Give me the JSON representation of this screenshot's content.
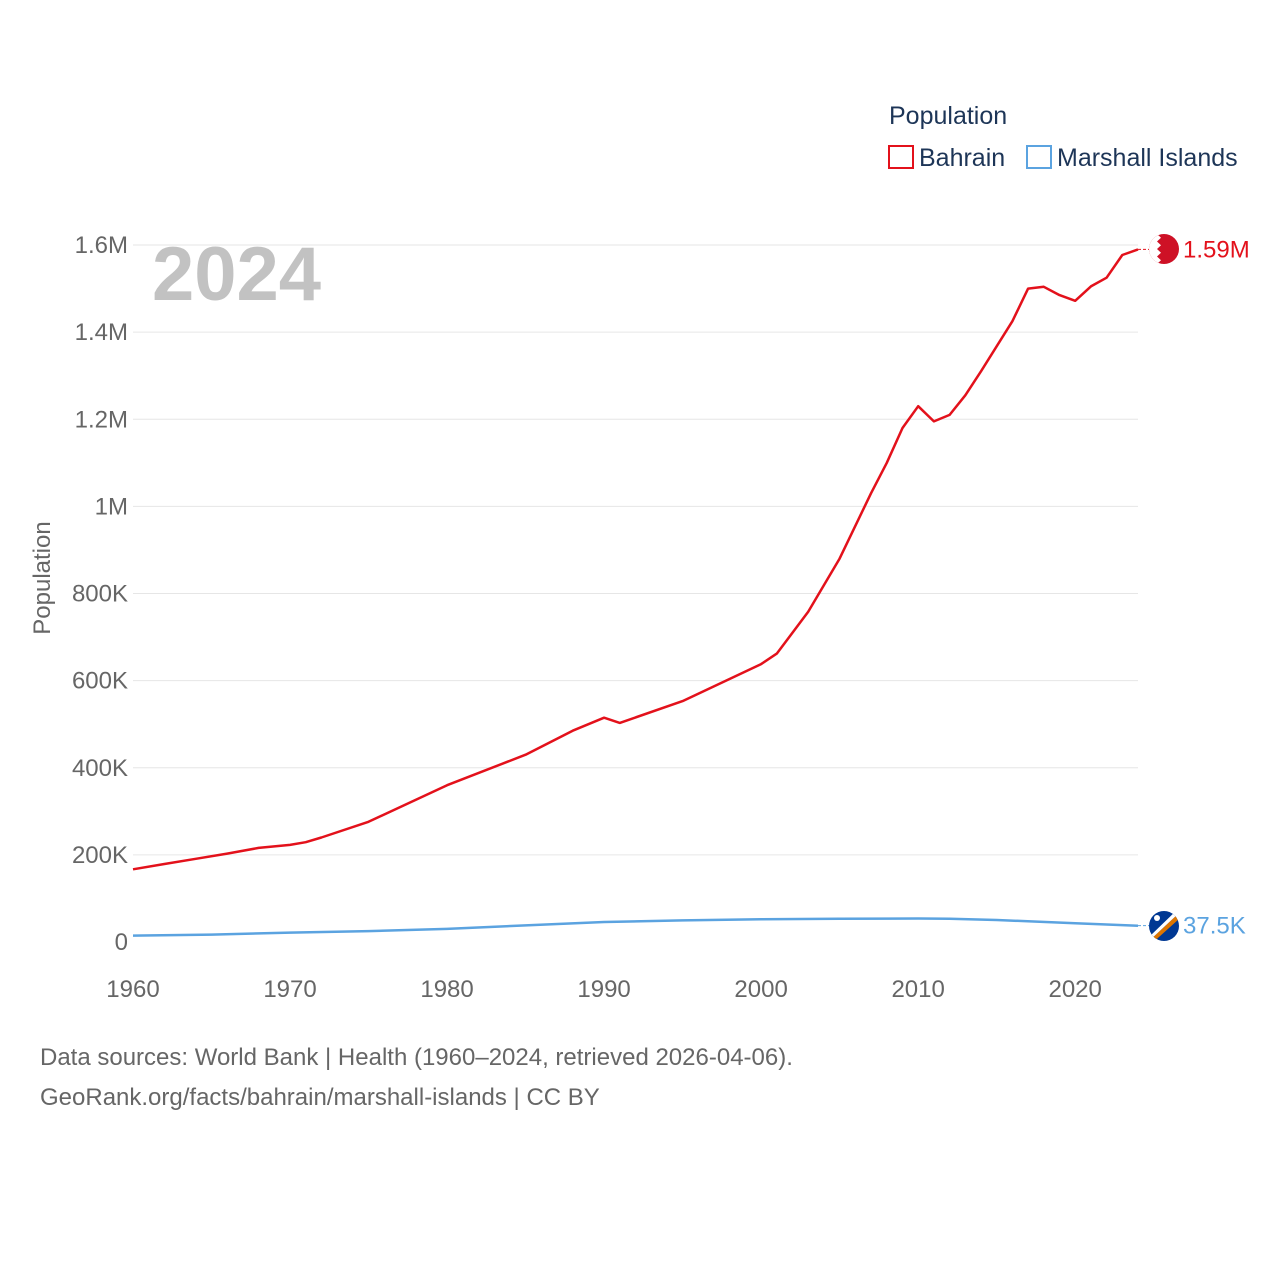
{
  "chart_data": {
    "type": "line",
    "title": "",
    "year_label": "2024",
    "ylabel": "Population",
    "xlabel": "",
    "xlim": [
      1960,
      2024
    ],
    "ylim": [
      0,
      1600000
    ],
    "x_ticks": [
      {
        "value": 1960,
        "label": "1960"
      },
      {
        "value": 1970,
        "label": "1970"
      },
      {
        "value": 1980,
        "label": "1980"
      },
      {
        "value": 1990,
        "label": "1990"
      },
      {
        "value": 2000,
        "label": "2000"
      },
      {
        "value": 2010,
        "label": "2010"
      },
      {
        "value": 2020,
        "label": "2020"
      }
    ],
    "y_ticks": [
      {
        "value": 0,
        "label": "0"
      },
      {
        "value": 200000,
        "label": "200K"
      },
      {
        "value": 400000,
        "label": "400K"
      },
      {
        "value": 600000,
        "label": "600K"
      },
      {
        "value": 800000,
        "label": "800K"
      },
      {
        "value": 1000000,
        "label": "1M"
      },
      {
        "value": 1200000,
        "label": "1.2M"
      },
      {
        "value": 1400000,
        "label": "1.4M"
      },
      {
        "value": 1600000,
        "label": "1.6M"
      }
    ],
    "legend": {
      "title": "Population",
      "position": "top-right"
    },
    "grid": true,
    "series": [
      {
        "name": "Bahrain",
        "color": "#e3111b",
        "end_label": "1.59M",
        "flag": "bahrain-flag",
        "points": [
          [
            1960,
            167000
          ],
          [
            1962,
            179000
          ],
          [
            1964,
            191000
          ],
          [
            1966,
            203000
          ],
          [
            1968,
            216000
          ],
          [
            1970,
            223000
          ],
          [
            1971,
            229000
          ],
          [
            1972,
            240000
          ],
          [
            1975,
            276000
          ],
          [
            1980,
            360000
          ],
          [
            1985,
            430000
          ],
          [
            1988,
            485000
          ],
          [
            1990,
            515000
          ],
          [
            1991,
            503000
          ],
          [
            1995,
            553000
          ],
          [
            2000,
            638000
          ],
          [
            2001,
            662000
          ],
          [
            2003,
            758000
          ],
          [
            2005,
            880000
          ],
          [
            2007,
            1030000
          ],
          [
            2008,
            1100000
          ],
          [
            2009,
            1180000
          ],
          [
            2010,
            1230000
          ],
          [
            2011,
            1195000
          ],
          [
            2012,
            1210000
          ],
          [
            2013,
            1255000
          ],
          [
            2014,
            1310000
          ],
          [
            2016,
            1425000
          ],
          [
            2017,
            1500000
          ],
          [
            2018,
            1504000
          ],
          [
            2019,
            1485000
          ],
          [
            2020,
            1472000
          ],
          [
            2021,
            1505000
          ],
          [
            2022,
            1525000
          ],
          [
            2023,
            1577000
          ],
          [
            2024,
            1590000
          ]
        ]
      },
      {
        "name": "Marshall Islands",
        "color": "#5ba3e0",
        "end_label": "37.5K",
        "flag": "marshall-islands-flag",
        "points": [
          [
            1960,
            14700
          ],
          [
            1965,
            17000
          ],
          [
            1970,
            21500
          ],
          [
            1975,
            25000
          ],
          [
            1980,
            30000
          ],
          [
            1985,
            38000
          ],
          [
            1990,
            46000
          ],
          [
            1995,
            49500
          ],
          [
            2000,
            52000
          ],
          [
            2005,
            53500
          ],
          [
            2010,
            54000
          ],
          [
            2012,
            53500
          ],
          [
            2015,
            50500
          ],
          [
            2020,
            43000
          ],
          [
            2024,
            37500
          ]
        ]
      }
    ]
  },
  "footer": {
    "source_line": "Data sources: World Bank | Health (1960–2024, retrieved 2026-04-06).",
    "url_line": "GeoRank.org/facts/bahrain/marshall-islands | CC BY"
  }
}
